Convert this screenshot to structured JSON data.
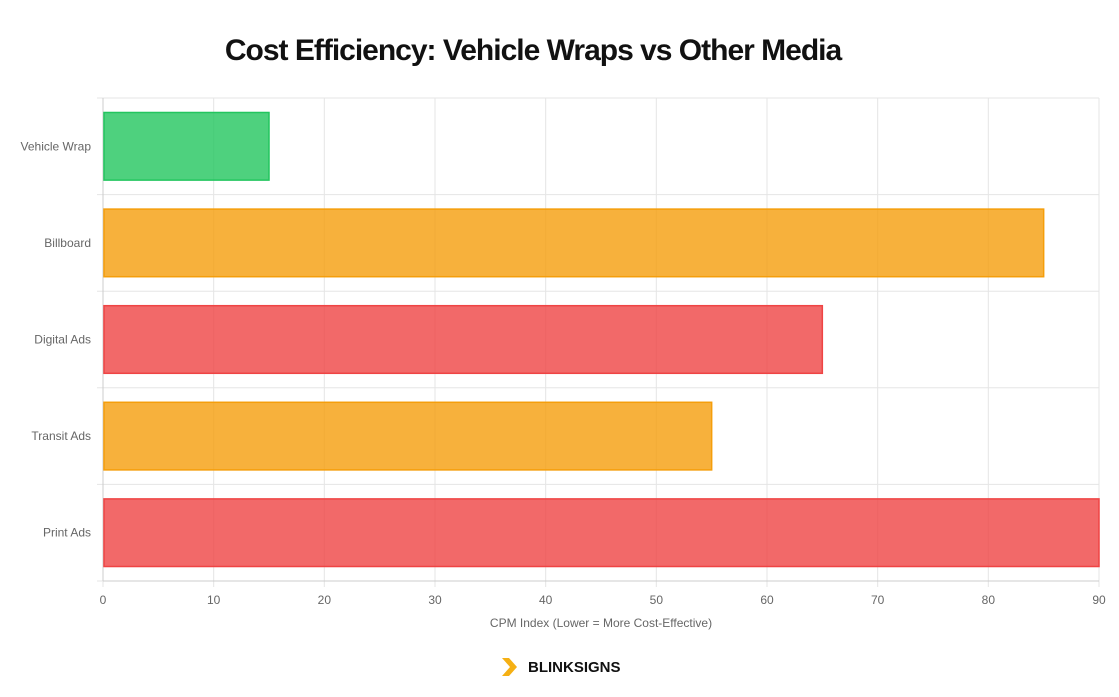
{
  "chart_data": {
    "type": "bar",
    "orientation": "horizontal",
    "title": "Cost Efficiency: Vehicle Wraps vs Other Media",
    "categories": [
      "Vehicle Wrap",
      "Billboard",
      "Digital Ads",
      "Transit Ads",
      "Print Ads"
    ],
    "values": [
      15,
      85,
      65,
      55,
      90
    ],
    "colors": [
      "#22c55e",
      "#f59e0b",
      "#ef4444",
      "#f59e0b",
      "#ef4444"
    ],
    "xlabel": "CPM Index (Lower = More Cost-Effective)",
    "ylabel": "",
    "xlim": [
      0,
      90
    ],
    "xticks": [
      "0",
      "10",
      "20",
      "30",
      "40",
      "50",
      "60",
      "70",
      "80",
      "90"
    ],
    "grid": true,
    "legend": "none"
  },
  "brand": {
    "name": "BLINKSIGNS",
    "accent": "#f5b014"
  }
}
